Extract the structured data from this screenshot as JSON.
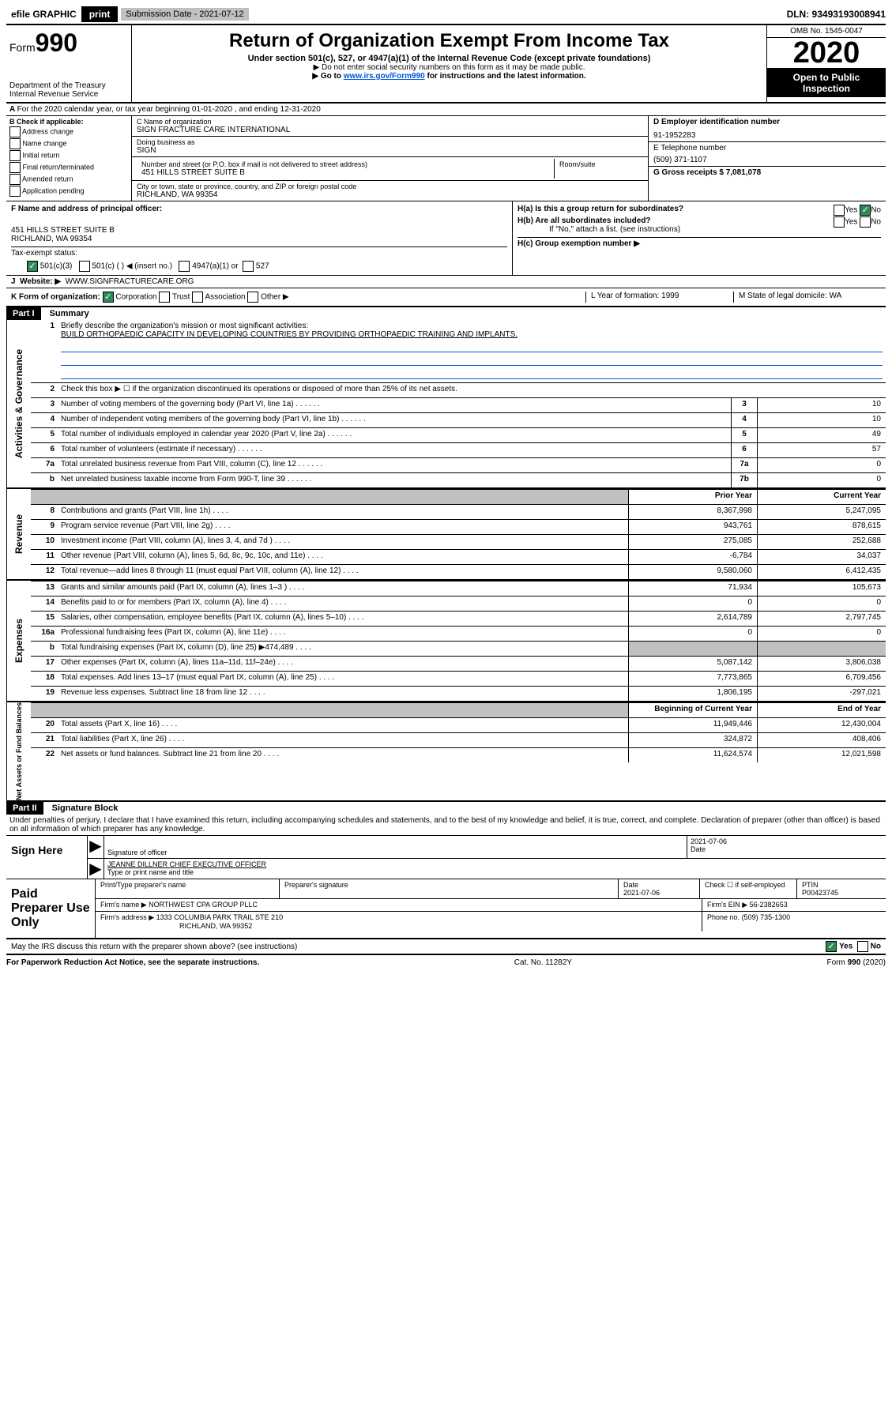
{
  "topbar": {
    "efile": "efile GRAPHIC",
    "print": "print",
    "subdate_label": "Submission Date - 2021-07-12",
    "dln": "DLN: 93493193008941"
  },
  "header": {
    "form_prefix": "Form",
    "form_number": "990",
    "dept": "Department of the Treasury",
    "irs": "Internal Revenue Service",
    "title": "Return of Organization Exempt From Income Tax",
    "subtitle": "Under section 501(c), 527, or 4947(a)(1) of the Internal Revenue Code (except private foundations)",
    "note1": "▶ Do not enter social security numbers on this form as it may be made public.",
    "note2_pre": "▶ Go to ",
    "note2_link": "www.irs.gov/Form990",
    "note2_post": " for instructions and the latest information.",
    "omb": "OMB No. 1545-0047",
    "year": "2020",
    "inspect1": "Open to Public",
    "inspect2": "Inspection"
  },
  "rowA": "For the 2020 calendar year, or tax year beginning 01-01-2020    , and ending 12-31-2020",
  "colB": {
    "title": "B Check if applicable:",
    "opts": [
      "Address change",
      "Name change",
      "Initial return",
      "Final return/terminated",
      "Amended return",
      "Application pending"
    ]
  },
  "colC": {
    "name_label": "C Name of organization",
    "name": "SIGN FRACTURE CARE INTERNATIONAL",
    "dba_label": "Doing business as",
    "dba": "SIGN",
    "street_label": "Number and street (or P.O. box if mail is not delivered to street address)",
    "room_label": "Room/suite",
    "street": "451 HILLS STREET SUITE B",
    "city_label": "City or town, state or province, country, and ZIP or foreign postal code",
    "city": "RICHLAND, WA  99354"
  },
  "colD": {
    "ein_label": "D Employer identification number",
    "ein": "91-1952283",
    "tel_label": "E Telephone number",
    "tel": "(509) 371-1107",
    "gross_label": "G Gross receipts $ 7,081,078"
  },
  "rowF": {
    "label": "F  Name and address of principal officer:",
    "addr1": "451 HILLS STREET SUITE B",
    "addr2": "RICHLAND, WA  99354"
  },
  "rowH": {
    "ha": "H(a)  Is this a group return for subordinates?",
    "hb": "H(b)  Are all subordinates included?",
    "hb_note": "If \"No,\" attach a list. (see instructions)",
    "hc": "H(c)  Group exemption number ▶",
    "yes": "Yes",
    "no": "No"
  },
  "rowI": {
    "label": "Tax-exempt status:",
    "opts": [
      "501(c)(3)",
      "501(c) (  ) ◀ (insert no.)",
      "4947(a)(1) or",
      "527"
    ]
  },
  "rowJ": {
    "label": "Website: ▶",
    "value": "WWW.SIGNFRACTURECARE.ORG"
  },
  "rowK": {
    "label": "K Form of organization:",
    "opts": [
      "Corporation",
      "Trust",
      "Association",
      "Other ▶"
    ],
    "L": "L Year of formation: 1999",
    "M": "M State of legal domicile: WA"
  },
  "part1": {
    "hdr": "Part I",
    "title": "Summary",
    "q1": "Briefly describe the organization's mission or most significant activities:",
    "q1_ans": "BUILD ORTHOPAEDIC CAPACITY IN DEVELOPING COUNTRIES BY PROVIDING ORTHOPAEDIC TRAINING AND IMPLANTS.",
    "q2": "Check this box ▶ ☐ if the organization discontinued its operations or disposed of more than 25% of its net assets."
  },
  "gov_rows": [
    {
      "n": "3",
      "d": "Number of voting members of the governing body (Part VI, line 1a)",
      "b": "3",
      "v": "10"
    },
    {
      "n": "4",
      "d": "Number of independent voting members of the governing body (Part VI, line 1b)",
      "b": "4",
      "v": "10"
    },
    {
      "n": "5",
      "d": "Total number of individuals employed in calendar year 2020 (Part V, line 2a)",
      "b": "5",
      "v": "49"
    },
    {
      "n": "6",
      "d": "Total number of volunteers (estimate if necessary)",
      "b": "6",
      "v": "57"
    },
    {
      "n": "7a",
      "d": "Total unrelated business revenue from Part VIII, column (C), line 12",
      "b": "7a",
      "v": "0"
    },
    {
      "n": "b",
      "d": "Net unrelated business taxable income from Form 990-T, line 39",
      "b": "7b",
      "v": "0"
    }
  ],
  "two_col_hdr": {
    "prior": "Prior Year",
    "current": "Current Year",
    "beg": "Beginning of Current Year",
    "end": "End of Year"
  },
  "revenue": [
    {
      "n": "8",
      "d": "Contributions and grants (Part VIII, line 1h)",
      "p": "8,367,998",
      "c": "5,247,095"
    },
    {
      "n": "9",
      "d": "Program service revenue (Part VIII, line 2g)",
      "p": "943,761",
      "c": "878,615"
    },
    {
      "n": "10",
      "d": "Investment income (Part VIII, column (A), lines 3, 4, and 7d )",
      "p": "275,085",
      "c": "252,688"
    },
    {
      "n": "11",
      "d": "Other revenue (Part VIII, column (A), lines 5, 6d, 8c, 9c, 10c, and 11e)",
      "p": "-6,784",
      "c": "34,037"
    },
    {
      "n": "12",
      "d": "Total revenue—add lines 8 through 11 (must equal Part VIII, column (A), line 12)",
      "p": "9,580,060",
      "c": "6,412,435"
    }
  ],
  "expenses": [
    {
      "n": "13",
      "d": "Grants and similar amounts paid (Part IX, column (A), lines 1–3 )",
      "p": "71,934",
      "c": "105,673"
    },
    {
      "n": "14",
      "d": "Benefits paid to or for members (Part IX, column (A), line 4)",
      "p": "0",
      "c": "0"
    },
    {
      "n": "15",
      "d": "Salaries, other compensation, employee benefits (Part IX, column (A), lines 5–10)",
      "p": "2,614,789",
      "c": "2,797,745"
    },
    {
      "n": "16a",
      "d": "Professional fundraising fees (Part IX, column (A), line 11e)",
      "p": "0",
      "c": "0"
    },
    {
      "n": "b",
      "d": "Total fundraising expenses (Part IX, column (D), line 25) ▶474,489",
      "p": "",
      "c": "",
      "grey": true
    },
    {
      "n": "17",
      "d": "Other expenses (Part IX, column (A), lines 11a–11d, 11f–24e)",
      "p": "5,087,142",
      "c": "3,806,038"
    },
    {
      "n": "18",
      "d": "Total expenses. Add lines 13–17 (must equal Part IX, column (A), line 25)",
      "p": "7,773,865",
      "c": "6,709,456"
    },
    {
      "n": "19",
      "d": "Revenue less expenses. Subtract line 18 from line 12",
      "p": "1,806,195",
      "c": "-297,021"
    }
  ],
  "netassets": [
    {
      "n": "20",
      "d": "Total assets (Part X, line 16)",
      "p": "11,949,446",
      "c": "12,430,004"
    },
    {
      "n": "21",
      "d": "Total liabilities (Part X, line 26)",
      "p": "324,872",
      "c": "408,406"
    },
    {
      "n": "22",
      "d": "Net assets or fund balances. Subtract line 21 from line 20",
      "p": "11,624,574",
      "c": "12,021,598"
    }
  ],
  "side_labels": {
    "gov": "Activities & Governance",
    "rev": "Revenue",
    "exp": "Expenses",
    "net": "Net Assets or Fund Balances"
  },
  "part2": {
    "hdr": "Part II",
    "title": "Signature Block",
    "perjury": "Under penalties of perjury, I declare that I have examined this return, including accompanying schedules and statements, and to the best of my knowledge and belief, it is true, correct, and complete. Declaration of preparer (other than officer) is based on all information of which preparer has any knowledge."
  },
  "sign": {
    "here": "Sign Here",
    "sig_label": "Signature of officer",
    "date": "2021-07-06",
    "date_label": "Date",
    "name": "JEANNE DILLNER  CHIEF EXECUTIVE OFFICER",
    "name_label": "Type or print name and title"
  },
  "prep": {
    "title": "Paid Preparer Use Only",
    "h1": "Print/Type preparer's name",
    "h2": "Preparer's signature",
    "h3": "Date",
    "date": "2021-07-06",
    "h4": "Check ☐ if self-employed",
    "h5": "PTIN",
    "ptin": "P00423745",
    "firm_label": "Firm's name    ▶",
    "firm": "NORTHWEST CPA GROUP PLLC",
    "ein_label": "Firm's EIN ▶",
    "ein": "56-2382653",
    "addr_label": "Firm's address ▶",
    "addr1": "1333 COLUMBIA PARK TRAIL STE 210",
    "addr2": "RICHLAND, WA  99352",
    "phone_label": "Phone no.",
    "phone": "(509) 735-1300"
  },
  "discuss": {
    "q": "May the IRS discuss this return with the preparer shown above? (see instructions)",
    "yes": "Yes",
    "no": "No"
  },
  "footer": {
    "left": "For Paperwork Reduction Act Notice, see the separate instructions.",
    "mid": "Cat. No. 11282Y",
    "right": "Form 990 (2020)"
  }
}
